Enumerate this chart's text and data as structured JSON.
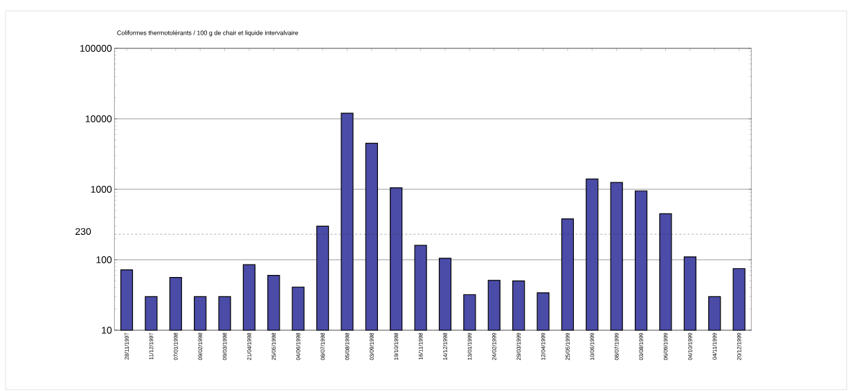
{
  "chart_data": {
    "type": "bar",
    "title": "Coliformes thermotolérants / 100 g de chair et liquide intervalvaire",
    "categories": [
      "28/11/1997",
      "11/12/1997",
      "07/01/1998",
      "09/02/1998",
      "09/03/1998",
      "21/04/1998",
      "25/05/1998",
      "04/06/1998",
      "08/07/1998",
      "05/08/1998",
      "03/09/1998",
      "19/10/1998",
      "16/11/1998",
      "14/12/1998",
      "13/01/1999",
      "24/02/1999",
      "29/03/1999",
      "12/04/1999",
      "25/05/1999",
      "10/06/1999",
      "08/07/1999",
      "03/08/1999",
      "06/09/1999",
      "04/10/1999",
      "04/11/1999",
      "20/12/1999"
    ],
    "values": [
      72,
      30,
      56,
      30,
      30,
      85,
      60,
      41,
      300,
      12000,
      4500,
      1050,
      160,
      105,
      32,
      51,
      50,
      34,
      380,
      1400,
      1250,
      950,
      450,
      110,
      30,
      75
    ],
    "color": "#4b4ba8",
    "log": "y",
    "ylim": [
      10,
      100000
    ],
    "yticks": [
      10,
      100,
      1000,
      10000,
      100000
    ],
    "grid": "y",
    "ref_lines": [
      {
        "axis": "y",
        "value": 230,
        "label": "230",
        "line_style": "dashed"
      }
    ]
  }
}
